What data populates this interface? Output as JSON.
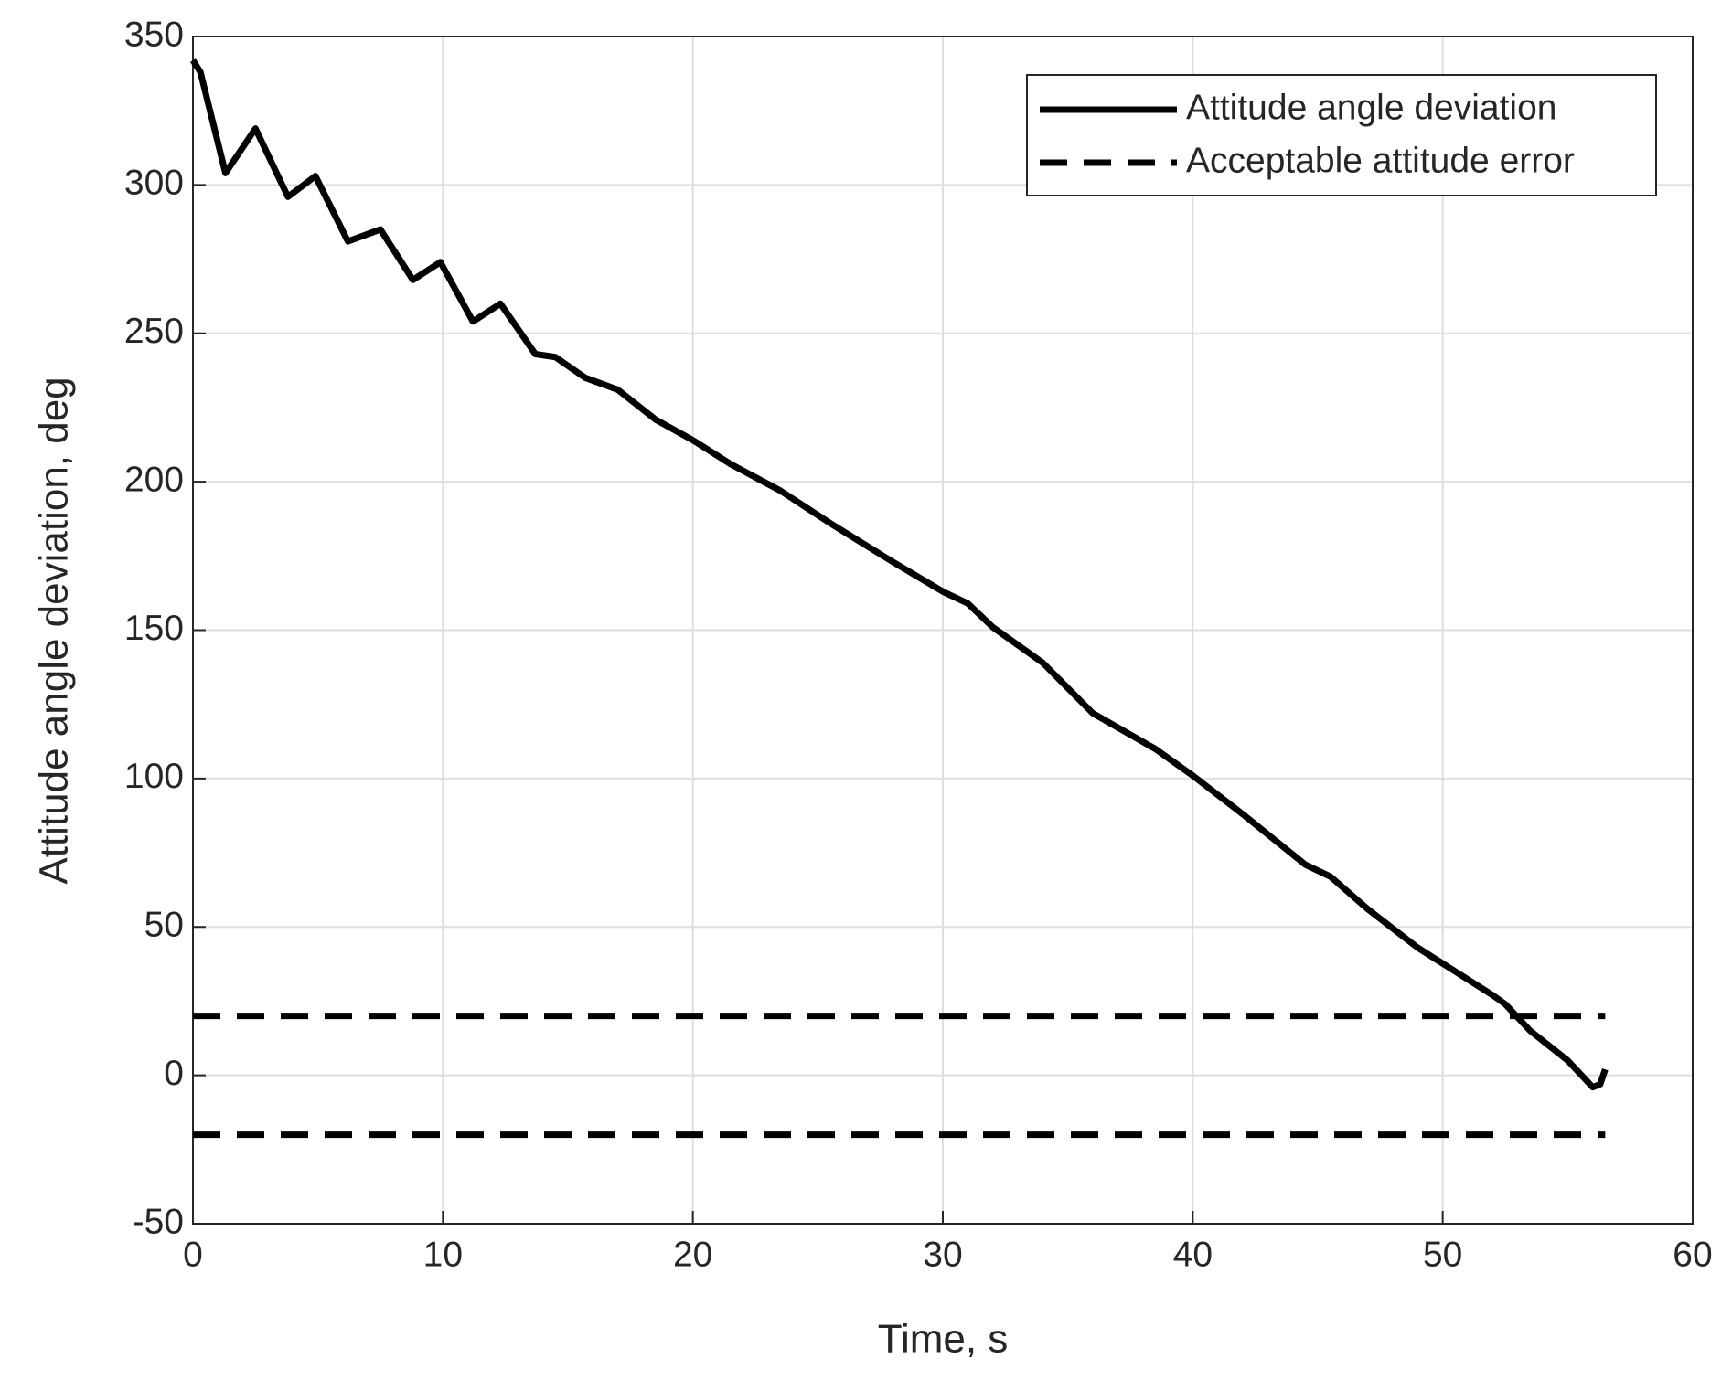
{
  "chart_data": {
    "type": "line",
    "xlabel": "Time, s",
    "ylabel": "Attitude angle deviation, deg",
    "xlim": [
      0,
      60
    ],
    "xticks": [
      0,
      10,
      20,
      30,
      40,
      50,
      60
    ],
    "ylim": [
      -50,
      350
    ],
    "yticks": [
      -50,
      0,
      50,
      100,
      150,
      200,
      250,
      300,
      350
    ],
    "grid": true,
    "legend": "upper right",
    "series": [
      {
        "name": "Attitude angle deviation",
        "color": "#000000",
        "dash": "solid",
        "x": [
          0,
          0.3,
          1.3,
          2.5,
          3.8,
          4.9,
          6.2,
          7.5,
          8.8,
          9.9,
          11.2,
          12.3,
          13.7,
          14.5,
          15.7,
          17,
          18.5,
          20,
          21.5,
          23.5,
          25.5,
          28,
          30,
          31,
          32,
          34,
          36,
          38.5,
          40,
          42,
          44.5,
          45.5,
          47,
          49,
          50.5,
          52,
          52.5,
          53.5,
          55,
          56,
          56.3,
          56.5
        ],
        "values": [
          342,
          338,
          304,
          319,
          296,
          303,
          281,
          285,
          268,
          274,
          254,
          260,
          243,
          242,
          235,
          231,
          221,
          214,
          206,
          197,
          186,
          173,
          163,
          159,
          151,
          139,
          122,
          110,
          101,
          88,
          71,
          67,
          56,
          43,
          35,
          27,
          24,
          15,
          5,
          -4,
          -3,
          2
        ]
      },
      {
        "name": "Acceptable attitude error",
        "color": "#000000",
        "dash": "dashed",
        "x": [
          0,
          56.5,
          null,
          0,
          56.5
        ],
        "values": [
          20,
          20,
          null,
          -20,
          -20
        ]
      }
    ]
  }
}
